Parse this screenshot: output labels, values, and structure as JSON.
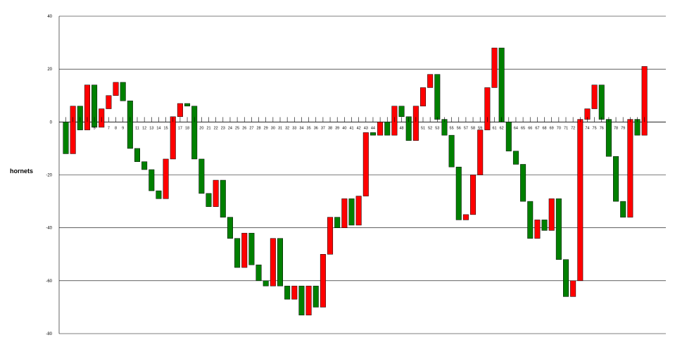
{
  "chart_data": {
    "type": "waterfall",
    "ylabel": "hornets",
    "ylim": [
      -80,
      40
    ],
    "yticks": [
      40,
      20,
      0,
      -20,
      -40,
      -60,
      -80
    ],
    "grid": true,
    "colors": {
      "up": "#ff0000",
      "down": "#008000",
      "axis": "#000000"
    },
    "x_tick_labels": [
      "",
      "",
      "",
      "",
      "5",
      "",
      "7",
      "8",
      "9",
      "",
      "11",
      "12",
      "13",
      "14",
      "15",
      "",
      "17",
      "18",
      "",
      "20",
      "21",
      "22",
      "23",
      "24",
      "25",
      "26",
      "27",
      "28",
      "29",
      "30",
      "31",
      "32",
      "33",
      "34",
      "35",
      "36",
      "37",
      "38",
      "39",
      "40",
      "41",
      "42",
      "43",
      "44",
      "",
      "",
      "",
      "48",
      "",
      "",
      "51",
      "52",
      "53",
      "",
      "55",
      "56",
      "57",
      "58",
      "59",
      "",
      "61",
      "62",
      "",
      "64",
      "65",
      "66",
      "67",
      "68",
      "69",
      "70",
      "71",
      "72",
      "",
      "74",
      "75",
      "76",
      "",
      "78",
      "79",
      "",
      "",
      "",
      ""
    ],
    "bars": [
      {
        "x": 1,
        "open": 0,
        "close": -12
      },
      {
        "x": 2,
        "open": -12,
        "close": 6
      },
      {
        "x": 3,
        "open": 6,
        "close": -3
      },
      {
        "x": 4,
        "open": -3,
        "close": 14
      },
      {
        "x": 5,
        "open": 14,
        "close": -2
      },
      {
        "x": 6,
        "open": -2,
        "close": 5
      },
      {
        "x": 7,
        "open": 5,
        "close": 10
      },
      {
        "x": 8,
        "open": 10,
        "close": 15
      },
      {
        "x": 9,
        "open": 15,
        "close": 8
      },
      {
        "x": 10,
        "open": 8,
        "close": -10
      },
      {
        "x": 11,
        "open": -10,
        "close": -15
      },
      {
        "x": 12,
        "open": -15,
        "close": -18
      },
      {
        "x": 13,
        "open": -18,
        "close": -26
      },
      {
        "x": 14,
        "open": -26,
        "close": -29
      },
      {
        "x": 15,
        "open": -29,
        "close": -14
      },
      {
        "x": 16,
        "open": -14,
        "close": 2
      },
      {
        "x": 17,
        "open": 2,
        "close": 7
      },
      {
        "x": 18,
        "open": 7,
        "close": 6
      },
      {
        "x": 19,
        "open": 6,
        "close": -14
      },
      {
        "x": 20,
        "open": -14,
        "close": -27
      },
      {
        "x": 21,
        "open": -27,
        "close": -32
      },
      {
        "x": 22,
        "open": -32,
        "close": -22
      },
      {
        "x": 23,
        "open": -22,
        "close": -36
      },
      {
        "x": 24,
        "open": -36,
        "close": -44
      },
      {
        "x": 25,
        "open": -44,
        "close": -55
      },
      {
        "x": 26,
        "open": -55,
        "close": -42
      },
      {
        "x": 27,
        "open": -42,
        "close": -54
      },
      {
        "x": 28,
        "open": -54,
        "close": -60
      },
      {
        "x": 29,
        "open": -60,
        "close": -62
      },
      {
        "x": 30,
        "open": -62,
        "close": -44
      },
      {
        "x": 31,
        "open": -44,
        "close": -62
      },
      {
        "x": 32,
        "open": -62,
        "close": -67
      },
      {
        "x": 33,
        "open": -67,
        "close": -62
      },
      {
        "x": 34,
        "open": -62,
        "close": -73
      },
      {
        "x": 35,
        "open": -73,
        "close": -62
      },
      {
        "x": 36,
        "open": -62,
        "close": -70
      },
      {
        "x": 37,
        "open": -70,
        "close": -50
      },
      {
        "x": 38,
        "open": -50,
        "close": -36
      },
      {
        "x": 39,
        "open": -36,
        "close": -40
      },
      {
        "x": 40,
        "open": -40,
        "close": -29
      },
      {
        "x": 41,
        "open": -29,
        "close": -39
      },
      {
        "x": 42,
        "open": -39,
        "close": -28
      },
      {
        "x": 43,
        "open": -28,
        "close": -4
      },
      {
        "x": 44,
        "open": -4,
        "close": -5
      },
      {
        "x": 45,
        "open": -5,
        "close": 0
      },
      {
        "x": 46,
        "open": 0,
        "close": -5
      },
      {
        "x": 47,
        "open": -5,
        "close": 6
      },
      {
        "x": 48,
        "open": 6,
        "close": 2
      },
      {
        "x": 49,
        "open": 2,
        "close": -7
      },
      {
        "x": 50,
        "open": -7,
        "close": 6
      },
      {
        "x": 51,
        "open": 6,
        "close": 13
      },
      {
        "x": 52,
        "open": 13,
        "close": 18
      },
      {
        "x": 53,
        "open": 18,
        "close": 1
      },
      {
        "x": 54,
        "open": 1,
        "close": -5
      },
      {
        "x": 55,
        "open": -5,
        "close": -17
      },
      {
        "x": 56,
        "open": -17,
        "close": -37
      },
      {
        "x": 57,
        "open": -37,
        "close": -35
      },
      {
        "x": 58,
        "open": -35,
        "close": -20
      },
      {
        "x": 59,
        "open": -20,
        "close": -3
      },
      {
        "x": 60,
        "open": -3,
        "close": 13
      },
      {
        "x": 61,
        "open": 13,
        "close": 28
      },
      {
        "x": 62,
        "open": 28,
        "close": 0
      },
      {
        "x": 63,
        "open": 0,
        "close": -11
      },
      {
        "x": 64,
        "open": -11,
        "close": -16
      },
      {
        "x": 65,
        "open": -16,
        "close": -30
      },
      {
        "x": 66,
        "open": -30,
        "close": -44
      },
      {
        "x": 67,
        "open": -44,
        "close": -37
      },
      {
        "x": 68,
        "open": -37,
        "close": -41
      },
      {
        "x": 69,
        "open": -41,
        "close": -29
      },
      {
        "x": 70,
        "open": -29,
        "close": -52
      },
      {
        "x": 71,
        "open": -52,
        "close": -66
      },
      {
        "x": 72,
        "open": -66,
        "close": -60
      },
      {
        "x": 73,
        "open": -60,
        "close": 1
      },
      {
        "x": 74,
        "open": 1,
        "close": 5
      },
      {
        "x": 75,
        "open": 5,
        "close": 14
      },
      {
        "x": 76,
        "open": 14,
        "close": 1
      },
      {
        "x": 77,
        "open": 1,
        "close": -13
      },
      {
        "x": 78,
        "open": -13,
        "close": -30
      },
      {
        "x": 79,
        "open": -30,
        "close": -36
      },
      {
        "x": 80,
        "open": -36,
        "close": 1
      },
      {
        "x": 81,
        "open": 1,
        "close": -5
      },
      {
        "x": 82,
        "open": -5,
        "close": 21
      }
    ]
  }
}
